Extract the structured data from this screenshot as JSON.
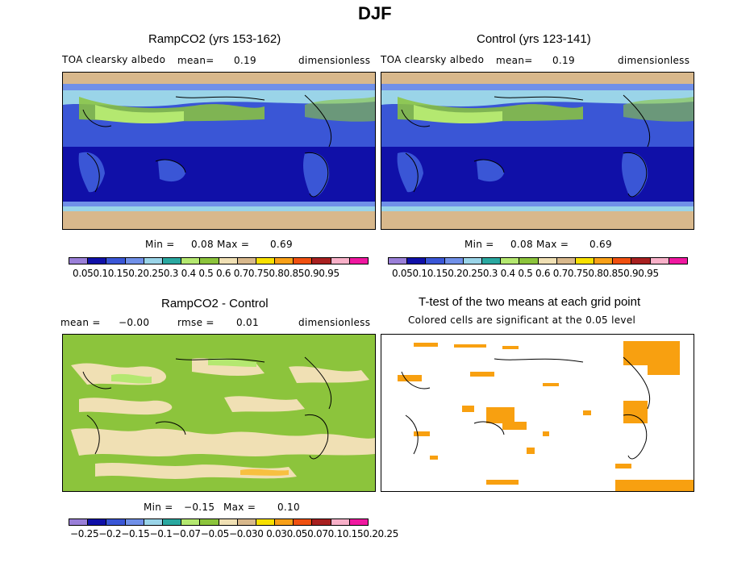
{
  "figure": {
    "title": "DJF"
  },
  "colorbar_colors": [
    "#9a7fd8",
    "#1010a8",
    "#3a56d6",
    "#7090e8",
    "#9ad4e8",
    "#2aa8a0",
    "#b4e870",
    "#8cc43c",
    "#f0e0b4",
    "#d8b88c",
    "#f8e000",
    "#f8a018",
    "#f05010",
    "#a82020",
    "#f8b0c8",
    "#f018a0"
  ],
  "panels": {
    "ramp": {
      "title": "RampCO2 (yrs 153-162)",
      "var": "TOA clearsky albedo",
      "mean_label": "mean=",
      "mean": "0.19",
      "units": "dimensionless",
      "min_label": "Min =",
      "min": "0.08",
      "max_label": "Max =",
      "max": "0.69",
      "ticks": "0.050.10.150.20.250.3 0.4 0.5 0.6 0.70.750.80.850.90.95"
    },
    "control": {
      "title": "Control (yrs 123-141)",
      "var": "TOA clearsky albedo",
      "mean_label": "mean=",
      "mean": "0.19",
      "units": "dimensionless",
      "min_label": "Min =",
      "min": "0.08",
      "max_label": "Max =",
      "max": "0.69",
      "ticks": "0.050.10.150.20.250.3 0.4 0.5 0.6 0.70.750.80.850.90.95"
    },
    "diff": {
      "title": "RampCO2 - Control",
      "mean_label": "mean =",
      "mean": "−0.00",
      "rmse_label": "rmse =",
      "rmse": "0.01",
      "units": "dimensionless",
      "min_label": "Min =",
      "min": "−0.15",
      "max_label": "Max =",
      "max": "0.10",
      "ticks": "−0.25−0.2−0.15−0.1−0.07−0.05−0.030 0.030.050.070.10.150.20.25"
    },
    "ttest": {
      "title": "T-test of the two means at each grid point",
      "subtitle": "Colored cells are significant at the 0.05 level",
      "sig_color": "#f8a010"
    }
  }
}
